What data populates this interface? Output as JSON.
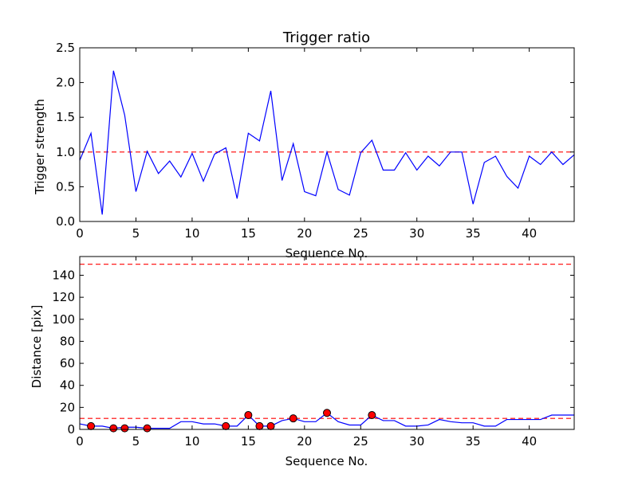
{
  "chart_data": [
    {
      "type": "line",
      "title": "Trigger ratio",
      "xlabel": "Sequence No.",
      "ylabel": "Trigger strength",
      "xlim": [
        0,
        44
      ],
      "ylim": [
        0,
        2.5
      ],
      "x_ticks": [
        0,
        5,
        10,
        15,
        20,
        25,
        30,
        35,
        40
      ],
      "x_tick_labels": [
        "0",
        "5",
        "10",
        "15",
        "20",
        "25",
        "30",
        "35",
        "40"
      ],
      "y_ticks": [
        0,
        0.5,
        1.0,
        1.5,
        2.0,
        2.5
      ],
      "y_tick_labels": [
        "0.0",
        "0.5",
        "1.0",
        "1.5",
        "2.0",
        "2.5"
      ],
      "grid": false,
      "series": [
        {
          "color": "#0000ff",
          "style": "solid",
          "x": [
            0,
            1,
            2,
            3,
            4,
            5,
            6,
            7,
            8,
            9,
            10,
            11,
            12,
            13,
            14,
            15,
            16,
            17,
            18,
            19,
            20,
            21,
            22,
            23,
            24,
            25,
            26,
            27,
            28,
            29,
            30,
            31,
            32,
            33,
            34,
            35,
            36,
            37,
            38,
            39,
            40,
            41,
            42,
            43,
            44
          ],
          "y": [
            0.88,
            1.27,
            0.1,
            2.17,
            1.53,
            0.43,
            1.01,
            0.69,
            0.87,
            0.64,
            0.98,
            0.58,
            0.97,
            1.06,
            0.33,
            1.27,
            1.16,
            1.88,
            0.59,
            1.12,
            0.43,
            0.37,
            1.0,
            0.46,
            0.38,
            0.99,
            1.17,
            0.74,
            0.74,
            0.99,
            0.74,
            0.94,
            0.8,
            1.0,
            1.0,
            0.25,
            0.85,
            0.94,
            0.65,
            0.48,
            0.94,
            0.82,
            1.0,
            0.82,
            0.96
          ]
        }
      ],
      "hlines": [
        {
          "y": 1.0,
          "color": "#ff0000",
          "style": "dashed"
        }
      ]
    },
    {
      "type": "line",
      "title": "",
      "xlabel": "Sequence No.",
      "ylabel": "Distance [pix]",
      "xlim": [
        0,
        44
      ],
      "ylim": [
        0,
        157
      ],
      "x_ticks": [
        0,
        5,
        10,
        15,
        20,
        25,
        30,
        35,
        40
      ],
      "x_tick_labels": [
        "0",
        "5",
        "10",
        "15",
        "20",
        "25",
        "30",
        "35",
        "40"
      ],
      "y_ticks": [
        0,
        20,
        40,
        60,
        80,
        100,
        120,
        140
      ],
      "y_tick_labels": [
        "0",
        "20",
        "40",
        "60",
        "80",
        "100",
        "120",
        "140"
      ],
      "grid": false,
      "series": [
        {
          "color": "#0000ff",
          "style": "solid",
          "x": [
            0,
            1,
            2,
            3,
            4,
            5,
            6,
            7,
            8,
            9,
            10,
            11,
            12,
            13,
            14,
            15,
            16,
            17,
            18,
            19,
            20,
            21,
            22,
            23,
            24,
            25,
            26,
            27,
            28,
            29,
            30,
            31,
            32,
            33,
            34,
            35,
            36,
            37,
            38,
            39,
            40,
            41,
            42,
            43,
            44
          ],
          "y": [
            5,
            3,
            3,
            1,
            2,
            2,
            1,
            1,
            1,
            7,
            7,
            5,
            5,
            3,
            3,
            13,
            3,
            3,
            8,
            10,
            7,
            7,
            15,
            7,
            4,
            4,
            13,
            8,
            8,
            3,
            3,
            4,
            9,
            7,
            6,
            6,
            3,
            3,
            9,
            9,
            9,
            9,
            13,
            13,
            13
          ]
        }
      ],
      "markers": {
        "color": "#ff0000",
        "x": [
          1,
          3,
          4,
          6,
          13,
          15,
          16,
          17,
          19,
          22,
          26
        ],
        "y": [
          3,
          1,
          1,
          1,
          3,
          13,
          3,
          3,
          10,
          15,
          13
        ]
      },
      "hlines": [
        {
          "y": 10,
          "color": "#ff0000",
          "style": "dashed"
        },
        {
          "y": 150,
          "color": "#ff0000",
          "style": "dashed"
        }
      ]
    }
  ]
}
